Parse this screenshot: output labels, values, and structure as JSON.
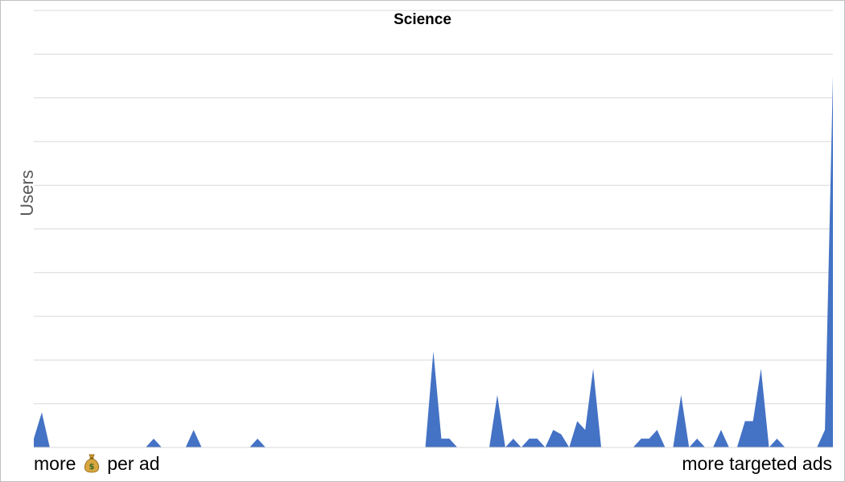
{
  "chart_data": {
    "type": "area",
    "title": "Science",
    "ylabel": "Users",
    "xlabel_left": {
      "before_icon": "more",
      "icon": "money-bag",
      "after_icon": "per ad"
    },
    "xlabel_right": "more targeted ads",
    "grid": true,
    "gridline_count": 10,
    "ylim": [
      0,
      10
    ],
    "color": "#4472C4",
    "x": [
      0,
      1,
      2,
      3,
      4,
      5,
      6,
      7,
      8,
      9,
      10,
      11,
      12,
      13,
      14,
      15,
      16,
      17,
      18,
      19,
      20,
      21,
      22,
      23,
      24,
      25,
      26,
      27,
      28,
      29,
      30,
      31,
      32,
      33,
      34,
      35,
      36,
      37,
      38,
      39,
      40,
      41,
      42,
      43,
      44,
      45,
      46,
      47,
      48,
      49,
      50,
      51,
      52,
      53,
      54,
      55,
      56,
      57,
      58,
      59,
      60,
      61,
      62,
      63,
      64,
      65,
      66,
      67,
      68,
      69,
      70,
      71,
      72,
      73,
      74,
      75,
      76,
      77,
      78,
      79,
      80,
      81,
      82,
      83,
      84,
      85,
      86,
      87,
      88,
      89,
      90,
      91,
      92,
      93,
      94,
      95,
      96,
      97,
      98,
      99,
      100
    ],
    "values": [
      0.2,
      0.8,
      0,
      0,
      0,
      0,
      0,
      0,
      0,
      0,
      0,
      0,
      0,
      0,
      0,
      0.2,
      0,
      0,
      0,
      0,
      0.4,
      0,
      0,
      0,
      0,
      0,
      0,
      0,
      0.2,
      0,
      0,
      0,
      0,
      0,
      0,
      0,
      0,
      0,
      0,
      0,
      0,
      0,
      0,
      0,
      0,
      0,
      0,
      0,
      0,
      0,
      2.2,
      0.2,
      0.2,
      0,
      0,
      0,
      0,
      0,
      1.2,
      0,
      0.2,
      0,
      0.2,
      0.2,
      0,
      0.4,
      0.3,
      0,
      0.6,
      0.4,
      1.8,
      0,
      0,
      0,
      0,
      0,
      0.2,
      0.2,
      0.4,
      0,
      0,
      1.2,
      0,
      0.2,
      0,
      0,
      0.4,
      0,
      0,
      0.6,
      0.6,
      1.8,
      0,
      0.2,
      0,
      0,
      0,
      0,
      0,
      0.4,
      8.5
    ]
  }
}
